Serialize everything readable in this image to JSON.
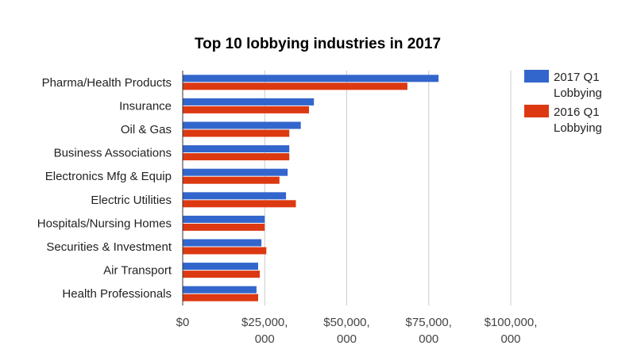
{
  "chart_data": {
    "type": "bar",
    "orientation": "horizontal",
    "title": "Top 10 lobbying industries in 2017",
    "xlabel": "",
    "ylabel": "",
    "categories": [
      "Pharma/Health Products",
      "Insurance",
      "Oil & Gas",
      "Business Associations",
      "Electronics Mfg & Equip",
      "Electric Utilities",
      "Hospitals/Nursing Homes",
      "Securities & Investment",
      "Air Transport",
      "Health Professionals"
    ],
    "series": [
      {
        "name": "2017 Q1 Lobbying",
        "legend_lines": [
          "2017 Q1",
          "Lobbying"
        ],
        "color": "#3366cc",
        "values": [
          78000000,
          40000000,
          36000000,
          32500000,
          32000000,
          31500000,
          25000000,
          24000000,
          23000000,
          22500000
        ]
      },
      {
        "name": "2016 Q1 Lobbying",
        "legend_lines": [
          "2016 Q1",
          "Lobbying"
        ],
        "color": "#dc3912",
        "values": [
          68500000,
          38500000,
          32500000,
          32500000,
          29500000,
          34500000,
          25000000,
          25500000,
          23500000,
          23000000
        ]
      }
    ],
    "xlim": [
      0,
      100000000
    ],
    "x_ticks": [
      {
        "value": 0,
        "lines": [
          "$0"
        ]
      },
      {
        "value": 25000000,
        "lines": [
          "$25,000,",
          "000"
        ]
      },
      {
        "value": 50000000,
        "lines": [
          "$50,000,",
          "000"
        ]
      },
      {
        "value": 75000000,
        "lines": [
          "$75,000,",
          "000"
        ]
      },
      {
        "value": 100000000,
        "lines": [
          "$100,000,",
          "000"
        ]
      }
    ],
    "grid": true,
    "legend_position": "right"
  }
}
